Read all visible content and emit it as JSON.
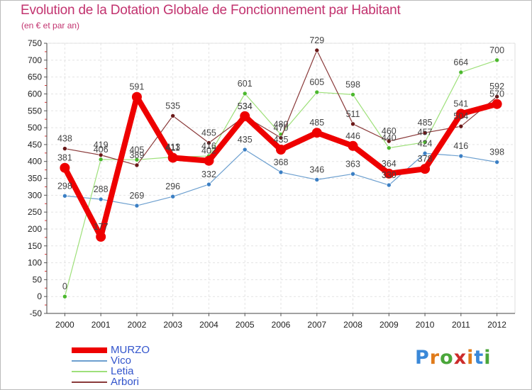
{
  "title": "Evolution de la Dotation Globale de Fonctionnement par Habitant",
  "subtitle": "(en € et par an)",
  "brand": {
    "text": "Proxiti",
    "letters": [
      "P",
      "r",
      "o",
      "x",
      "i",
      "t",
      "i"
    ],
    "colors": [
      "#3a88d8",
      "#e07b1a",
      "#4aa63a",
      "#cc2b2b",
      "#e07b1a",
      "#3a88d8",
      "#4aa63a"
    ]
  },
  "chart_data": {
    "type": "line",
    "title": "Evolution de la Dotation Globale de Fonctionnement par Habitant",
    "subtitle": "(en € et par an)",
    "xlabel": "",
    "ylabel": "",
    "categories": [
      "2000",
      "2001",
      "2002",
      "2003",
      "2004",
      "2005",
      "2006",
      "2007",
      "2008",
      "2009",
      "2010",
      "2011",
      "2012"
    ],
    "ylim": [
      -50,
      750
    ],
    "yticks": [
      -50,
      0,
      50,
      100,
      150,
      200,
      250,
      300,
      350,
      400,
      450,
      500,
      550,
      600,
      650,
      700,
      750
    ],
    "grid": true,
    "legend_position": "bottom-left",
    "series": [
      {
        "name": "Vico",
        "color": "#6c9fcf",
        "marker": "#3b7fc4",
        "lineWidth": 1.2,
        "markerSize": 3,
        "values": [
          298,
          288,
          269,
          296,
          332,
          435,
          368,
          346,
          363,
          330,
          424,
          416,
          398
        ],
        "labels": [
          "298",
          "288",
          "269",
          "296",
          "332",
          "435",
          "368",
          "346",
          "363",
          "330",
          "424",
          "416",
          "398"
        ]
      },
      {
        "name": "Letia",
        "color": "#9ee07a",
        "marker": "#4cb82e",
        "lineWidth": 1.2,
        "markerSize": 3,
        "values": [
          0,
          406,
          405,
          413,
          416,
          601,
          480,
          605,
          598,
          440,
          457,
          664,
          700
        ],
        "labels": [
          "0",
          "406",
          "405",
          "413",
          "416",
          "601",
          "480",
          "605",
          "598",
          "440",
          "457",
          "664",
          "700"
        ]
      },
      {
        "name": "Arbori",
        "color": "#8a3a3a",
        "marker": "#6a1818",
        "lineWidth": 1.2,
        "markerSize": 3,
        "values": [
          438,
          419,
          389,
          535,
          455,
          534,
          470,
          729,
          511,
          460,
          485,
          504,
          592
        ],
        "labels": [
          "438",
          "419",
          "389",
          "535",
          "455",
          "534",
          "470",
          "729",
          "511",
          "460",
          "485",
          "504",
          "592"
        ]
      },
      {
        "name": "MURZO",
        "color": "#ee0000",
        "marker": "#ee0000",
        "lineWidth": 8,
        "markerSize": 7,
        "values": [
          381,
          177,
          591,
          411,
          402,
          534,
          435,
          485,
          446,
          364,
          378,
          541,
          570
        ],
        "labels": [
          "381",
          "177",
          "591",
          "411",
          "402",
          "534",
          "435",
          "485",
          "446",
          "364",
          "378",
          "541",
          "570"
        ]
      }
    ]
  },
  "legend": [
    {
      "name": "MURZO",
      "color": "#ee0000",
      "thickness": 8
    },
    {
      "name": "Vico",
      "color": "#6c9fcf",
      "thickness": 2
    },
    {
      "name": "Letia",
      "color": "#9ee07a",
      "thickness": 2
    },
    {
      "name": "Arbori",
      "color": "#8a3a3a",
      "thickness": 2
    }
  ]
}
